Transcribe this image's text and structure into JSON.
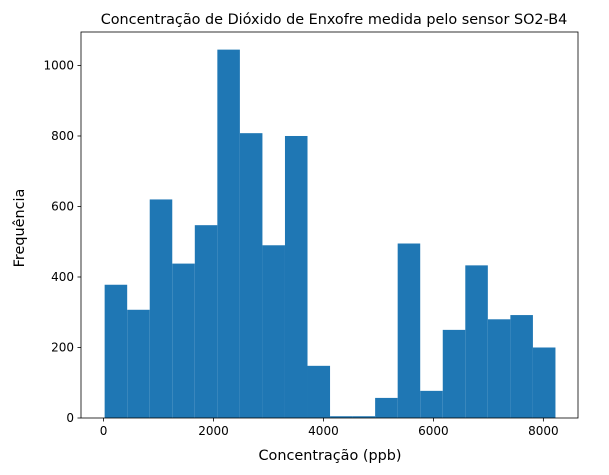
{
  "chart_data": {
    "type": "bar",
    "title": "Concentração de Dióxido de Enxofre medida pelo sensor SO2-B4",
    "xlabel": "Concentração (ppb)",
    "ylabel": "Frequência",
    "xlim": [
      -410,
      8630
    ],
    "ylim": [
      0,
      1095
    ],
    "xticks": [
      0,
      2000,
      4000,
      6000,
      8000
    ],
    "yticks": [
      0,
      200,
      400,
      600,
      800,
      1000
    ],
    "bin_edges": [
      20,
      430,
      840,
      1250,
      1660,
      2070,
      2480,
      2890,
      3300,
      3710,
      4120,
      4530,
      4940,
      5350,
      5760,
      6170,
      6580,
      6990,
      7400,
      7810,
      8220
    ],
    "values": [
      378,
      307,
      620,
      438,
      547,
      1045,
      808,
      490,
      800,
      148,
      5,
      5,
      57,
      495,
      77,
      250,
      433,
      280,
      292,
      200
    ],
    "bar_color": "#1f77b4",
    "grid": false
  }
}
